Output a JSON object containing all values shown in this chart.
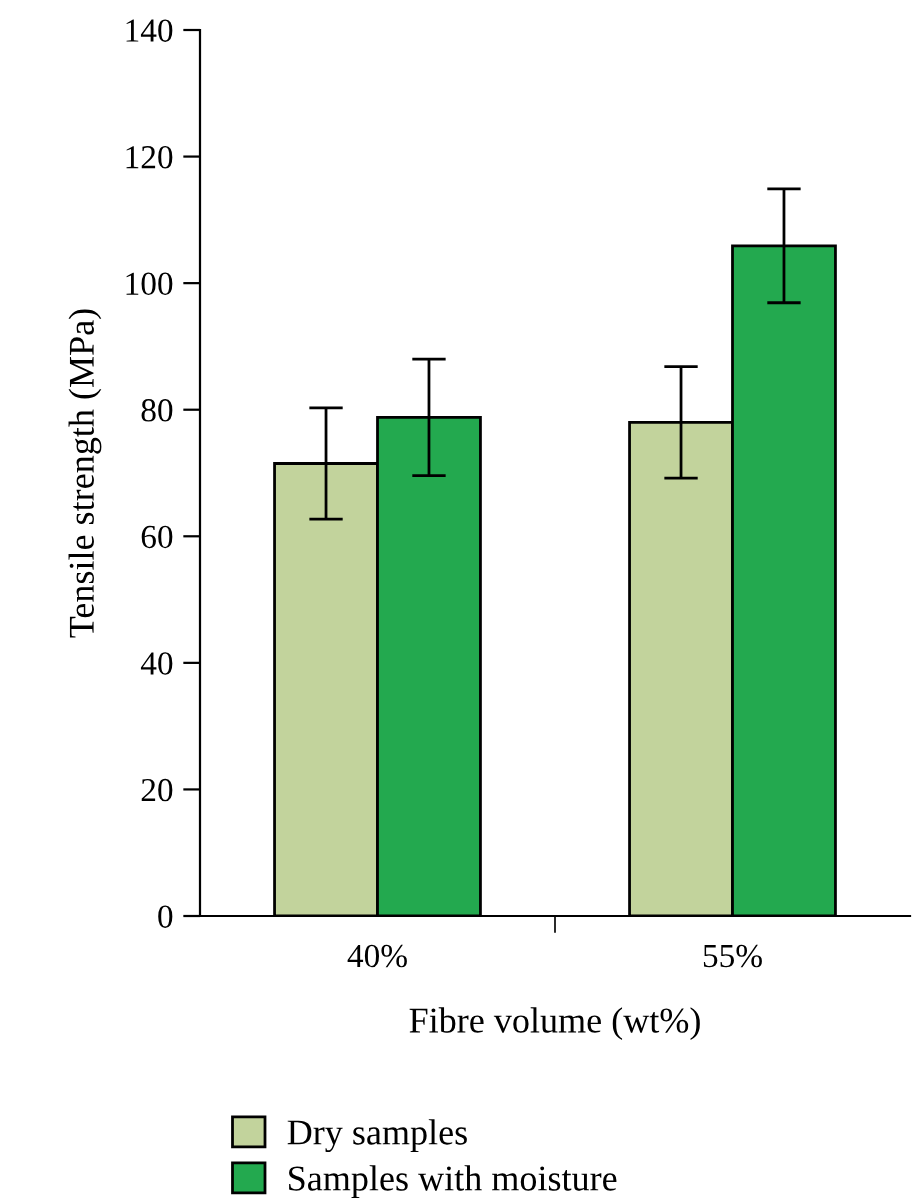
{
  "chart_data": {
    "type": "bar",
    "xlabel": "Fibre volume (wt%)",
    "ylabel": "Tensile strength (MPa)",
    "categories": [
      "40%",
      "55%"
    ],
    "series": [
      {
        "name": "Dry samples",
        "color": "#c2d39c",
        "values": [
          71.5,
          78.0
        ],
        "errors": [
          8.8,
          8.8
        ]
      },
      {
        "name": "Samples with moisture",
        "color": "#23a94f",
        "values": [
          78.8,
          105.9
        ],
        "errors": [
          9.2,
          9.0
        ]
      }
    ],
    "ylim": [
      0,
      140
    ],
    "yticks": [
      0,
      20,
      40,
      60,
      80,
      100,
      120,
      140
    ],
    "grid": false,
    "legend": "bottom"
  }
}
